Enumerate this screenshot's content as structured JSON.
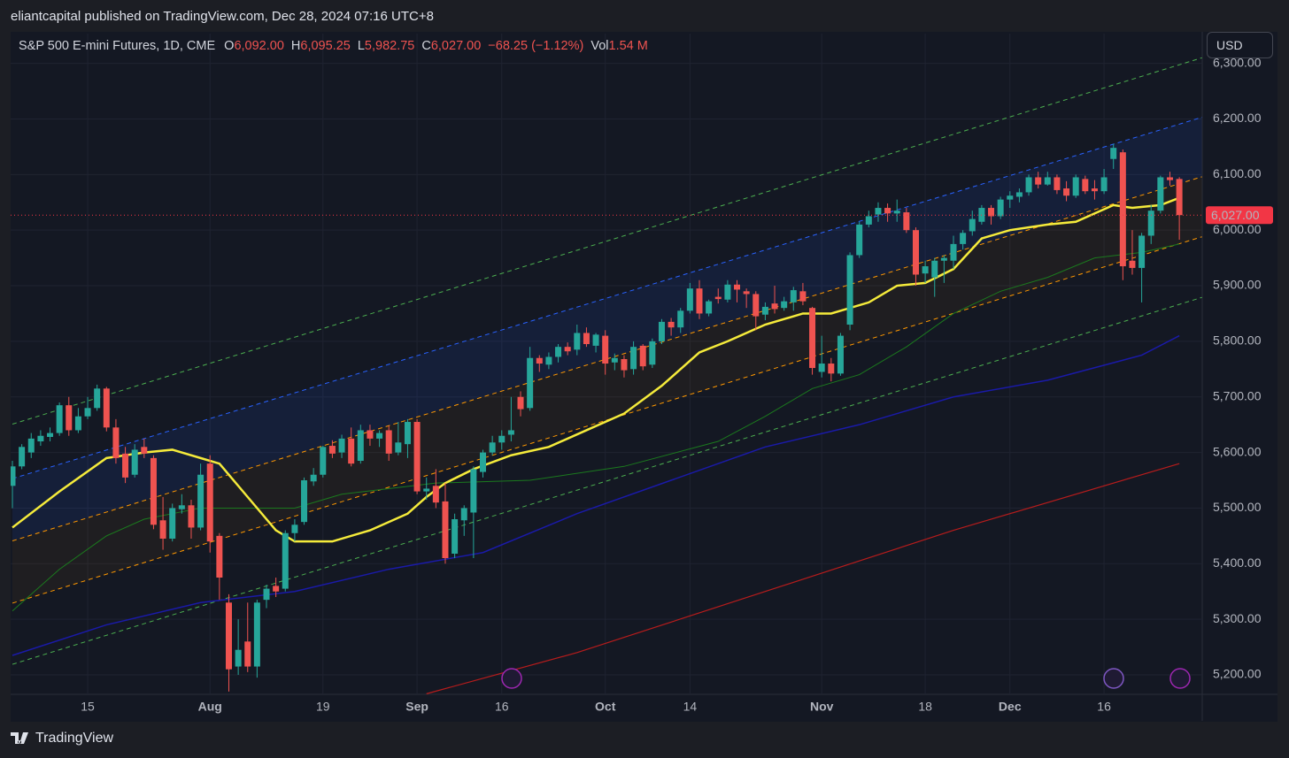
{
  "header": {
    "publisher": "eliantcapital published on TradingView.com, Dec 28, 2024 07:16 UTC+8",
    "currency": "USD",
    "brand": "TradingView"
  },
  "chart_data": {
    "type": "candlestick",
    "title": "S&P 500 E-mini Futures, 1D, CME",
    "ohlc_legend": [
      {
        "label": "O",
        "value": "6,092.00"
      },
      {
        "label": "H",
        "value": "6,095.25"
      },
      {
        "label": "L",
        "value": "5,982.75"
      },
      {
        "label": "C",
        "value": "6,027.00"
      }
    ],
    "change": "−68.25 (−1.12%)",
    "volume_label": "Vol",
    "volume": "1.54 M",
    "categories": [
      null,
      null,
      null,
      null,
      null,
      null,
      null,
      null,
      "15",
      null,
      null,
      null,
      null,
      null,
      null,
      null,
      null,
      null,
      null,
      null,
      null,
      "Aug",
      null,
      null,
      null,
      null,
      null,
      null,
      null,
      null,
      null,
      null,
      null,
      "19",
      null,
      null,
      null,
      null,
      null,
      null,
      null,
      null,
      null,
      "Sep",
      null,
      null,
      null,
      null,
      null,
      null,
      null,
      null,
      "16",
      null,
      null,
      null,
      null,
      null,
      null,
      null,
      null,
      null,
      null,
      "Oct",
      null,
      null,
      null,
      null,
      null,
      null,
      null,
      null,
      "14",
      null,
      null,
      null,
      null,
      null,
      null,
      null,
      null,
      null,
      null,
      null,
      null,
      null,
      "Nov",
      null,
      null,
      null,
      null,
      null,
      null,
      null,
      null,
      null,
      null,
      "18",
      null,
      null,
      null,
      null,
      null,
      null,
      null,
      null,
      "Dec",
      null,
      null,
      null,
      null,
      null,
      null,
      null,
      null,
      null,
      "16",
      null,
      null,
      null,
      null,
      null,
      null,
      null,
      null
    ],
    "open": [
      5540,
      5575,
      5600,
      5620,
      5628,
      5635,
      5685,
      5640,
      5665,
      5680,
      5715,
      5645,
      5598,
      5560,
      5610,
      5590,
      5478,
      5445,
      5498,
      5505,
      5465,
      5580,
      5450,
      5330,
      5215,
      5260,
      5215,
      5335,
      5360,
      5355,
      5455,
      5475,
      5548,
      5560,
      5612,
      5600,
      5625,
      5585,
      5640,
      5625,
      5640,
      5600,
      5615,
      5655,
      5530,
      5540,
      5512,
      5418,
      5478,
      5492,
      5565,
      5600,
      5618,
      5632,
      5700,
      5680,
      5770,
      5758,
      5772,
      5790,
      5785,
      5815,
      5792,
      5810,
      5762,
      5768,
      5750,
      5792,
      5758,
      5800,
      5835,
      5825,
      5855,
      5895,
      5850,
      5880,
      5875,
      5902,
      5890,
      5885,
      5848,
      5868,
      5860,
      5870,
      5890,
      5860,
      5745,
      5760,
      5742,
      5830,
      5955,
      6010,
      6028,
      6040,
      6030,
      6032,
      6000,
      5922,
      5915,
      5945,
      5945,
      5975,
      5998,
      6015,
      6040,
      6025,
      6055,
      6060,
      6068,
      6095,
      6082,
      6095,
      6075,
      6062,
      6092,
      6075,
      6070,
      6128,
      6140,
      5945,
      5932,
      5990,
      6035,
      6095,
      6092
    ],
    "high": [
      5585,
      5615,
      5635,
      5640,
      5645,
      5690,
      5700,
      5680,
      5700,
      5722,
      5718,
      5660,
      5610,
      5615,
      5625,
      5595,
      5520,
      5508,
      5525,
      5515,
      5580,
      5595,
      5455,
      5345,
      5300,
      5330,
      5335,
      5362,
      5375,
      5460,
      5480,
      5555,
      5572,
      5612,
      5622,
      5632,
      5645,
      5650,
      5650,
      5640,
      5648,
      5655,
      5660,
      5660,
      5555,
      5570,
      5545,
      5490,
      5505,
      5575,
      5605,
      5630,
      5640,
      5700,
      5710,
      5790,
      5775,
      5780,
      5795,
      5798,
      5830,
      5825,
      5815,
      5820,
      5778,
      5775,
      5800,
      5795,
      5805,
      5840,
      5842,
      5860,
      5905,
      5910,
      5875,
      5895,
      5910,
      5910,
      5895,
      5890,
      5870,
      5900,
      5880,
      5898,
      5905,
      5862,
      5810,
      5770,
      5815,
      5960,
      6015,
      6035,
      6050,
      6048,
      6055,
      6040,
      6005,
      5945,
      5950,
      5955,
      5990,
      6000,
      6035,
      6045,
      6045,
      6060,
      6070,
      6075,
      6100,
      6105,
      6105,
      6100,
      6088,
      6100,
      6098,
      6090,
      6110,
      6155,
      6145,
      6000,
      5995,
      6045,
      6098,
      6105,
      6095.25
    ],
    "low": [
      5500,
      5570,
      5590,
      5612,
      5620,
      5630,
      5630,
      5635,
      5660,
      5675,
      5638,
      5580,
      5545,
      5555,
      5590,
      5462,
      5425,
      5440,
      5490,
      5445,
      5460,
      5420,
      5335,
      5170,
      5200,
      5205,
      5195,
      5320,
      5340,
      5350,
      5440,
      5470,
      5540,
      5555,
      5590,
      5590,
      5575,
      5580,
      5612,
      5610,
      5585,
      5595,
      5590,
      5525,
      5515,
      5500,
      5400,
      5410,
      5450,
      5410,
      5555,
      5595,
      5605,
      5620,
      5665,
      5675,
      5745,
      5750,
      5762,
      5775,
      5775,
      5790,
      5780,
      5740,
      5748,
      5735,
      5740,
      5748,
      5752,
      5795,
      5810,
      5815,
      5850,
      5840,
      5845,
      5868,
      5870,
      5870,
      5860,
      5820,
      5838,
      5850,
      5855,
      5855,
      5865,
      5740,
      5735,
      5728,
      5738,
      5820,
      5950,
      6005,
      6015,
      6015,
      6015,
      5995,
      5900,
      5905,
      5880,
      5905,
      5930,
      5965,
      5990,
      6010,
      6010,
      6020,
      6040,
      6050,
      6062,
      6075,
      6080,
      6065,
      6052,
      6058,
      6065,
      6055,
      6065,
      6110,
      5910,
      5920,
      5870,
      5975,
      6030,
      6080,
      5982.75
    ],
    "close": [
      5575,
      5610,
      5625,
      5630,
      5635,
      5685,
      5640,
      5665,
      5680,
      5715,
      5645,
      5590,
      5555,
      5605,
      5598,
      5470,
      5445,
      5500,
      5505,
      5465,
      5560,
      5440,
      5375,
      5210,
      5245,
      5215,
      5330,
      5355,
      5350,
      5455,
      5470,
      5550,
      5560,
      5610,
      5598,
      5625,
      5580,
      5640,
      5625,
      5635,
      5598,
      5618,
      5655,
      5530,
      5535,
      5510,
      5410,
      5480,
      5500,
      5570,
      5600,
      5618,
      5630,
      5640,
      5678,
      5770,
      5760,
      5772,
      5790,
      5782,
      5815,
      5795,
      5812,
      5760,
      5770,
      5748,
      5790,
      5755,
      5800,
      5835,
      5825,
      5855,
      5895,
      5850,
      5872,
      5876,
      5902,
      5893,
      5885,
      5845,
      5862,
      5858,
      5872,
      5892,
      5872,
      5752,
      5760,
      5742,
      5810,
      5955,
      6010,
      6025,
      6040,
      6030,
      6035,
      6000,
      5920,
      5935,
      5945,
      5950,
      5975,
      5995,
      6020,
      6040,
      6025,
      6055,
      6062,
      6068,
      6095,
      6082,
      6095,
      6072,
      6062,
      6095,
      6070,
      6070,
      6095,
      6148,
      5935,
      5932,
      5990,
      6035,
      6095,
      6090,
      6027
    ],
    "up_color": "#26a69a",
    "down_color": "#ef5350",
    "ylim": [
      5165,
      6353.5
    ],
    "yticks": [
      {
        "value": 5200,
        "label": "5,200.00"
      },
      {
        "value": 5300,
        "label": "5,300.00"
      },
      {
        "value": 5400,
        "label": "5,400.00"
      },
      {
        "value": 5500,
        "label": "5,500.00"
      },
      {
        "value": 5600,
        "label": "5,600.00"
      },
      {
        "value": 5700,
        "label": "5,700.00"
      },
      {
        "value": 5800,
        "label": "5,800.00"
      },
      {
        "value": 5900,
        "label": "5,900.00"
      },
      {
        "value": 6000,
        "label": "6,000.00"
      },
      {
        "value": 6100,
        "label": "6,100.00"
      },
      {
        "value": 6200,
        "label": "6,200.00"
      },
      {
        "value": 6300,
        "label": "6,300.00"
      }
    ],
    "grid": true,
    "last_price": {
      "value": 6027,
      "label": "6,027.00",
      "color": "#f23645"
    },
    "overlays": [
      {
        "color": "#4caf50",
        "width": 1,
        "dash": true,
        "x": [
          0,
          126.4
        ],
        "values": [
          5651,
          6310
        ]
      },
      {
        "color": "#2962ff",
        "width": 1,
        "dash": true,
        "x": [
          0,
          126.4
        ],
        "values": [
          5553,
          6203
        ]
      },
      {
        "color": "#ff9800",
        "width": 1,
        "dash": true,
        "x": [
          0,
          126.4
        ],
        "values": [
          5441,
          6096
        ]
      },
      {
        "color": "#ff9800",
        "width": 1,
        "dash": true,
        "x": [
          0,
          126.4
        ],
        "values": [
          5329,
          5988
        ]
      },
      {
        "color": "#4caf50",
        "width": 1,
        "dash": true,
        "x": [
          0,
          126.4
        ],
        "values": [
          5219,
          5879
        ]
      },
      {
        "color": "#b71c1c",
        "width": 1.2,
        "dash": false,
        "x": [
          44,
          60,
          80,
          100,
          124
        ],
        "values": [
          5166,
          5240,
          5350,
          5460,
          5580
        ]
      },
      {
        "color": "#1a1aa8",
        "width": 1.5,
        "dash": false,
        "x": [
          0,
          10,
          20,
          30,
          40,
          50,
          60,
          70,
          80,
          90,
          100,
          110,
          120,
          124
        ],
        "values": [
          5235,
          5290,
          5330,
          5350,
          5390,
          5420,
          5490,
          5550,
          5610,
          5650,
          5700,
          5730,
          5775,
          5810
        ]
      },
      {
        "color": "#1b7a1e",
        "width": 1,
        "dash": false,
        "x": [
          0,
          5,
          10,
          14,
          20,
          25,
          30,
          35,
          45,
          55,
          65,
          75,
          80,
          85,
          90,
          95,
          100,
          105,
          110,
          115,
          120,
          124
        ],
        "values": [
          5315,
          5390,
          5450,
          5480,
          5500,
          5500,
          5500,
          5525,
          5545,
          5550,
          5575,
          5620,
          5665,
          5715,
          5740,
          5790,
          5850,
          5890,
          5915,
          5950,
          5960,
          5975
        ]
      },
      {
        "color": "#f5eb3b",
        "width": 2.5,
        "dash": false,
        "x": [
          0,
          5,
          10,
          14,
          17,
          20,
          22,
          25,
          28,
          30,
          34,
          38,
          42,
          44,
          46,
          49,
          53,
          57,
          61,
          65,
          69,
          73,
          76,
          80,
          84,
          87,
          89,
          91,
          94,
          97,
          100,
          103,
          106,
          110,
          113,
          117,
          119,
          122,
          124
        ],
        "values": [
          5465,
          5530,
          5590,
          5600,
          5605,
          5590,
          5580,
          5520,
          5460,
          5440,
          5440,
          5460,
          5490,
          5520,
          5545,
          5570,
          5595,
          5610,
          5640,
          5670,
          5720,
          5780,
          5800,
          5830,
          5850,
          5850,
          5860,
          5870,
          5900,
          5905,
          5930,
          5985,
          6000,
          6010,
          6015,
          6045,
          6040,
          6045,
          6058
        ]
      }
    ],
    "bands": [
      {
        "between": [
          1,
          2
        ],
        "color": "rgba(41,98,255,0.10)"
      },
      {
        "between": [
          2,
          3
        ],
        "color": "rgba(255,152,0,0.05)"
      }
    ]
  }
}
